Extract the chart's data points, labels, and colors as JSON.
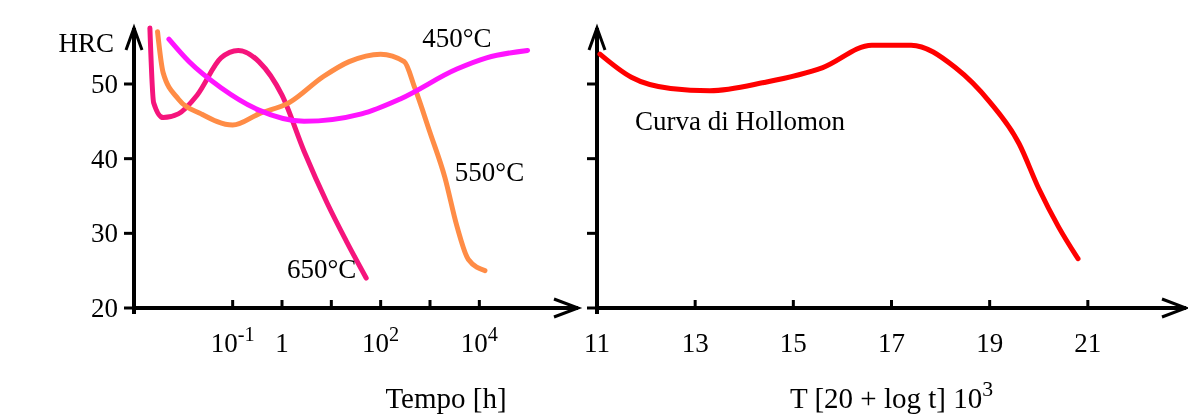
{
  "chart_data": [
    {
      "type": "line",
      "ylabel": "HRC",
      "xlabel": "Tempo [h]",
      "log": "x",
      "xlim": [
        0.001,
        1000000
      ],
      "xticks": [
        {
          "value": 0.1,
          "label": "10$^{-1}$"
        },
        {
          "value": 1,
          "label": "1"
        },
        {
          "value": 10,
          "label": null
        },
        {
          "value": 100,
          "label": "10$^{2}$"
        },
        {
          "value": 1000,
          "label": null
        },
        {
          "value": 10000,
          "label": "10$^{4}$"
        }
      ],
      "ylim": [
        20,
        57.5
      ],
      "yticks": [
        20,
        30,
        40,
        50
      ],
      "grid": false,
      "line_style": "solid",
      "series": [
        {
          "name": "650°C",
          "color": "#f5147c",
          "x": [
            0.0021,
            0.0025,
            0.0039,
            0.0079,
            0.019,
            0.058,
            0.13,
            0.34,
            1,
            2.8,
            8.3,
            20,
            51
          ],
          "values": [
            57.5,
            47.5,
            45.5,
            46,
            48.5,
            53.5,
            54.5,
            53,
            48.5,
            41,
            34,
            29,
            24
          ]
        },
        {
          "name": "550°C",
          "color": "#ff8c46",
          "x": [
            0.003,
            0.0039,
            0.0079,
            0.023,
            0.1,
            0.34,
            1.4,
            6.9,
            23,
            100,
            300,
            490,
            1000,
            2000,
            3500,
            6000,
            13000
          ],
          "values": [
            57,
            51.5,
            48,
            46,
            44.5,
            46,
            47.5,
            51,
            53,
            54,
            53,
            49.5,
            43.5,
            37.5,
            31,
            26.5,
            25
          ]
        },
        {
          "name": "450°C",
          "color": "#ff14ff",
          "x": [
            0.0051,
            0.013,
            0.058,
            0.34,
            2.8,
            41,
            250,
            3500,
            14000,
            95000
          ],
          "values": [
            56,
            53,
            49.5,
            46.5,
            45,
            46,
            48,
            52,
            53.5,
            54.5
          ]
        }
      ]
    },
    {
      "type": "line",
      "xlabel": "T [20 + log t] 10$^{3}$",
      "xlim": [
        11,
        23
      ],
      "xticks": [
        11,
        13,
        15,
        17,
        19,
        21
      ],
      "ylim": [
        20,
        57.5
      ],
      "yticks": [
        20,
        30,
        40,
        50
      ],
      "tick_labels": "x",
      "grid": false,
      "line_style": "solid",
      "annotations": [
        "Curva di Hollomon"
      ],
      "series": [
        {
          "color": "#ff0000",
          "x": [
            11.06,
            11.7,
            12.5,
            13.3,
            14.4,
            15.6,
            16.6,
            17.4,
            18.3,
            19.0,
            19.6,
            20.0,
            20.4,
            20.8
          ],
          "values": [
            54,
            50.9,
            49.4,
            49.1,
            50.2,
            52.2,
            55.2,
            55.2,
            52.2,
            47.6,
            42,
            36,
            30.9,
            26.6
          ]
        }
      ]
    }
  ]
}
